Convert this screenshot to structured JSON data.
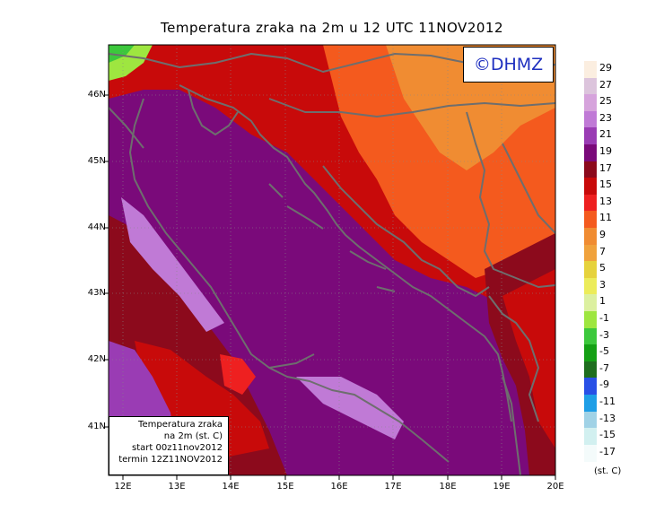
{
  "title": "Temperatura zraka na 2m u 12 UTC 11NOV2012",
  "badge": "©DHMZ",
  "info_box": {
    "line1": "Temperatura zraka",
    "line2": "na 2m (st. C)",
    "line3": "start 00z11nov2012",
    "line4": "termin 12Z11NOV2012"
  },
  "lat_labels": [
    "46N",
    "45N",
    "44N",
    "43N",
    "42N",
    "41N"
  ],
  "lon_labels": [
    "12E",
    "13E",
    "14E",
    "15E",
    "16E",
    "17E",
    "18E",
    "19E",
    "20E"
  ],
  "legend": {
    "unit": "(st. C)",
    "levels": [
      {
        "label": "29",
        "color": "#fbeee0"
      },
      {
        "label": "27",
        "color": "#dcc4dc"
      },
      {
        "label": "25",
        "color": "#d6a3dc"
      },
      {
        "label": "23",
        "color": "#c07ad6"
      },
      {
        "label": "21",
        "color": "#9a3cb4"
      },
      {
        "label": "19",
        "color": "#7a0a7a"
      },
      {
        "label": "17",
        "color": "#8c0a1c"
      },
      {
        "label": "15",
        "color": "#c80a0a"
      },
      {
        "label": "13",
        "color": "#ee2020"
      },
      {
        "label": "11",
        "color": "#f45a1e"
      },
      {
        "label": "9",
        "color": "#f08c32"
      },
      {
        "label": "7",
        "color": "#f0a23c"
      },
      {
        "label": "5",
        "color": "#e6d23c"
      },
      {
        "label": "3",
        "color": "#ecec5a"
      },
      {
        "label": "1",
        "color": "#dcf0a0"
      },
      {
        "label": "-1",
        "color": "#9ee640"
      },
      {
        "label": "-3",
        "color": "#3cc83c"
      },
      {
        "label": "-5",
        "color": "#14a014"
      },
      {
        "label": "-7",
        "color": "#1e6e1e"
      },
      {
        "label": "-9",
        "color": "#2850e6"
      },
      {
        "label": "-11",
        "color": "#1e9ee6"
      },
      {
        "label": "-13",
        "color": "#a0d2e6"
      },
      {
        "label": "-15",
        "color": "#d2f0f0"
      },
      {
        "label": "-17",
        "color": "#f4fbfb"
      }
    ]
  }
}
